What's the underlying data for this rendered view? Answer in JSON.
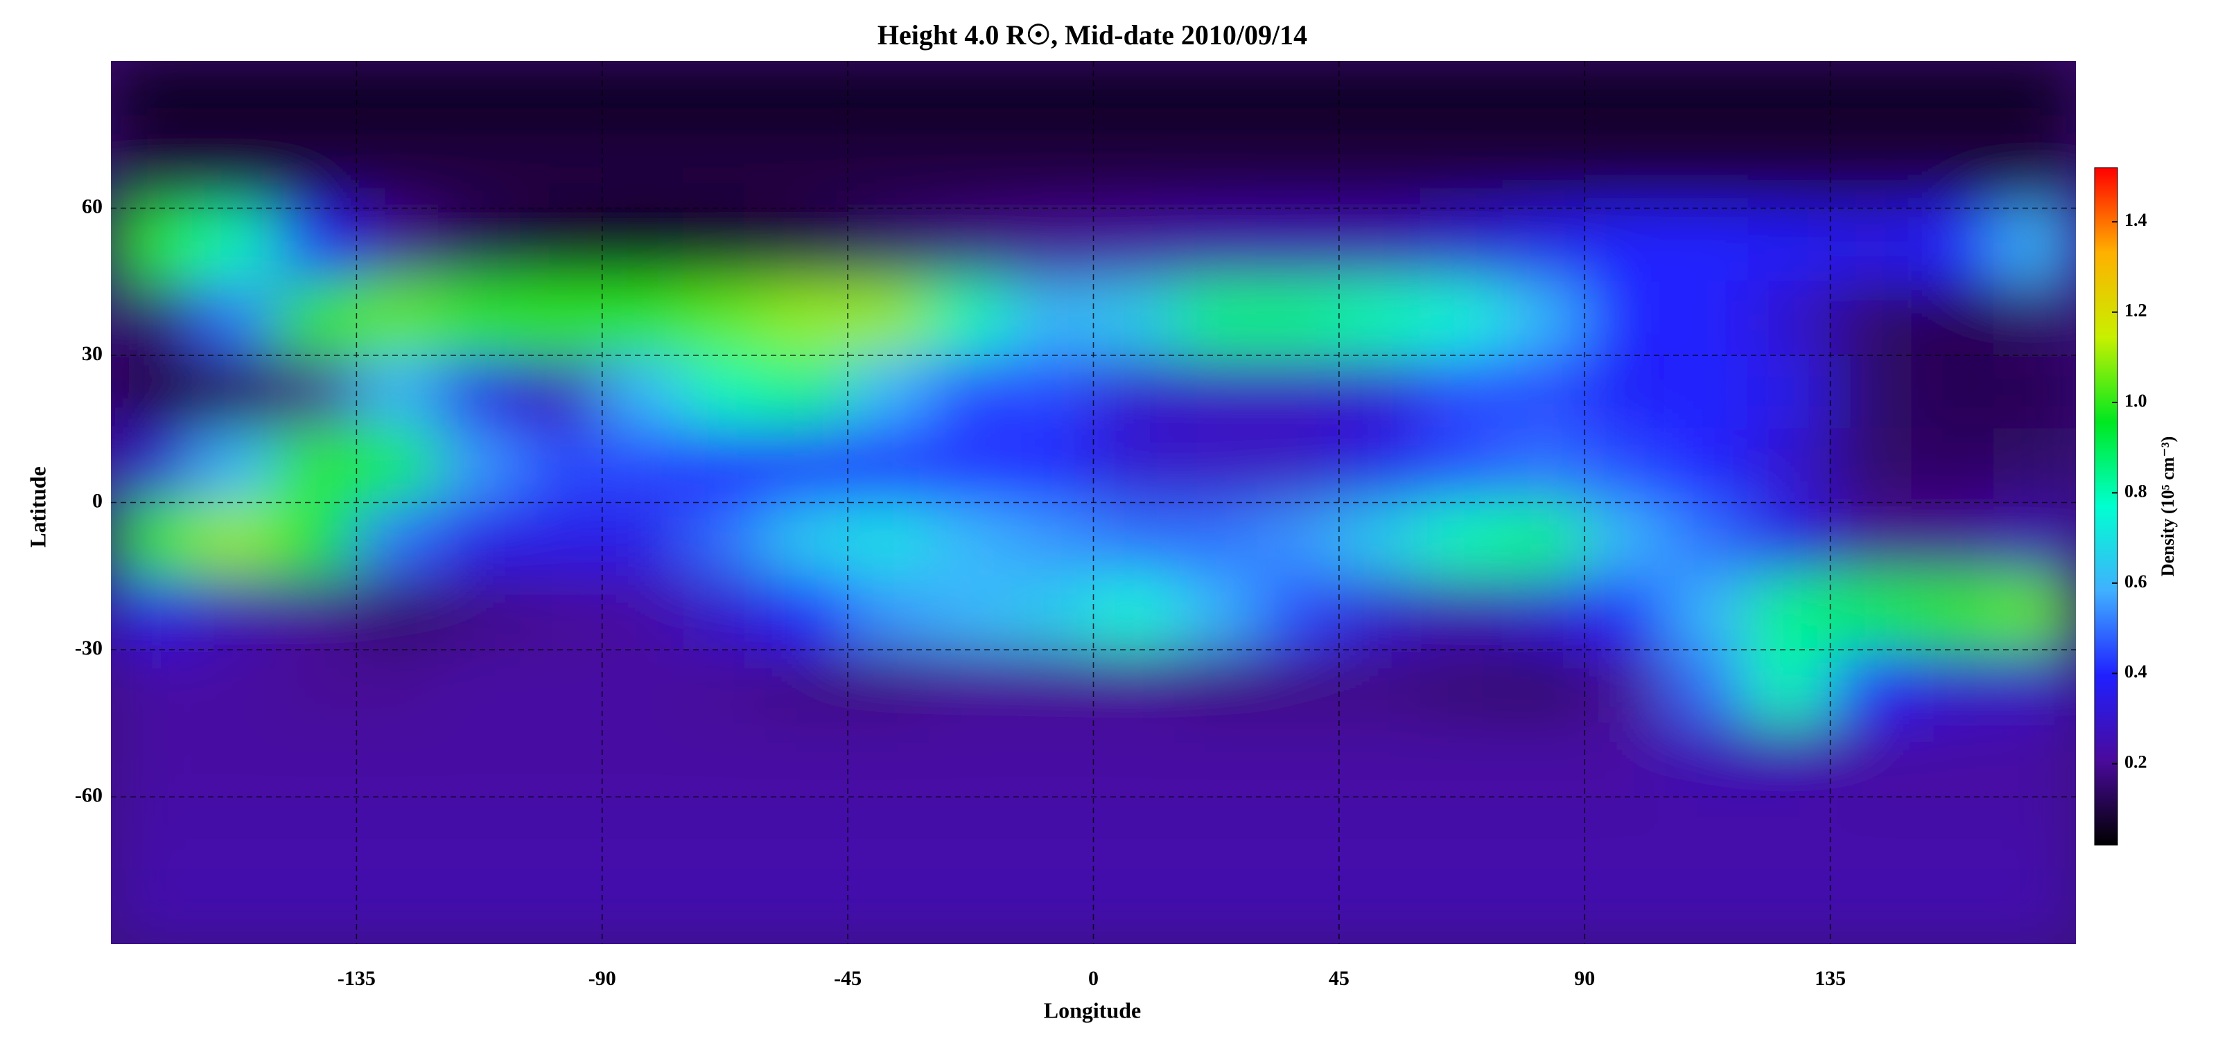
{
  "chart_data": {
    "type": "heatmap",
    "title": "Height 4.0 R☉, Mid-date 2010/09/14",
    "x_label": "Longitude",
    "y_label": "Latitude",
    "colorbar_label": "Density (10⁵ cm⁻³)",
    "xlim": [
      -180,
      180
    ],
    "ylim": [
      -90,
      90
    ],
    "xticks": [
      -135,
      -90,
      -45,
      0,
      45,
      90,
      135
    ],
    "yticks": [
      -60,
      -30,
      0,
      30,
      60
    ],
    "grid": true,
    "clim": [
      0.02,
      1.52
    ],
    "cticks": [
      0.2,
      0.4,
      0.6,
      0.8,
      {
        "value": 1,
        "label": "1.0"
      },
      1.2,
      1.4
    ],
    "colormap": [
      "#000000",
      "#4a0a9c",
      "#2020ff",
      "#40b0ff",
      "#00ffd0",
      "#00e820",
      "#c8f000",
      "#ffb000",
      "#ff0000"
    ],
    "x": [
      -172.5,
      -157.5,
      -142.5,
      -127.5,
      -112.5,
      -97.5,
      -82.5,
      -67.5,
      -52.5,
      -37.5,
      -22.5,
      -7.5,
      7.5,
      22.5,
      37.5,
      52.5,
      67.5,
      82.5,
      97.5,
      112.5,
      127.5,
      142.5,
      157.5,
      172.5
    ],
    "y": [
      82.5,
      67.5,
      52.5,
      37.5,
      22.5,
      7.5,
      -7.5,
      -22.5,
      -37.5,
      -52.5,
      -67.5,
      -82.5
    ],
    "z": [
      [
        0.06,
        0.06,
        0.06,
        0.06,
        0.06,
        0.06,
        0.06,
        0.06,
        0.06,
        0.06,
        0.06,
        0.06,
        0.06,
        0.06,
        0.06,
        0.06,
        0.06,
        0.06,
        0.06,
        0.06,
        0.06,
        0.06,
        0.06,
        0.06
      ],
      [
        0.1,
        0.1,
        0.1,
        0.1,
        0.1,
        0.1,
        0.1,
        0.1,
        0.1,
        0.1,
        0.1,
        0.1,
        0.1,
        0.1,
        0.1,
        0.1,
        0.1,
        0.1,
        0.1,
        0.1,
        0.1,
        0.1,
        0.1,
        0.1
      ],
      [
        1.0,
        0.8,
        0.4,
        0.2,
        0.12,
        0.07,
        0.06,
        0.07,
        0.1,
        0.15,
        0.18,
        0.2,
        0.22,
        0.24,
        0.25,
        0.25,
        0.3,
        0.35,
        0.4,
        0.4,
        0.38,
        0.35,
        0.4,
        0.6
      ],
      [
        0.15,
        0.5,
        1.0,
        1.05,
        1.0,
        1.0,
        1.0,
        1.05,
        1.1,
        1.1,
        0.8,
        0.6,
        0.65,
        0.85,
        0.85,
        0.8,
        0.75,
        0.6,
        0.4,
        0.4,
        0.3,
        0.15,
        0.12,
        0.15
      ],
      [
        0.1,
        0.12,
        0.2,
        0.6,
        0.35,
        0.25,
        0.6,
        0.8,
        0.85,
        0.6,
        0.45,
        0.45,
        0.3,
        0.28,
        0.28,
        0.3,
        0.45,
        0.45,
        0.38,
        0.4,
        0.35,
        0.15,
        0.12,
        0.12
      ],
      [
        0.3,
        0.6,
        1.0,
        0.9,
        0.55,
        0.45,
        0.45,
        0.4,
        0.4,
        0.4,
        0.42,
        0.4,
        0.3,
        0.28,
        0.28,
        0.35,
        0.45,
        0.5,
        0.45,
        0.4,
        0.3,
        0.15,
        0.14,
        0.15
      ],
      [
        1.0,
        1.1,
        0.95,
        0.5,
        0.35,
        0.35,
        0.35,
        0.5,
        0.65,
        0.7,
        0.6,
        0.55,
        0.5,
        0.5,
        0.55,
        0.65,
        0.8,
        0.85,
        0.6,
        0.5,
        0.35,
        0.2,
        0.2,
        0.25
      ],
      [
        0.35,
        0.25,
        0.2,
        0.15,
        0.18,
        0.2,
        0.22,
        0.3,
        0.4,
        0.55,
        0.6,
        0.65,
        0.75,
        0.6,
        0.45,
        0.3,
        0.25,
        0.3,
        0.4,
        0.6,
        0.85,
        0.9,
        1.0,
        1.05
      ],
      [
        0.22,
        0.22,
        0.2,
        0.2,
        0.22,
        0.22,
        0.22,
        0.2,
        0.18,
        0.18,
        0.2,
        0.2,
        0.2,
        0.18,
        0.18,
        0.18,
        0.16,
        0.15,
        0.2,
        0.5,
        0.8,
        0.4,
        0.3,
        0.28
      ],
      [
        0.22,
        0.22,
        0.22,
        0.22,
        0.22,
        0.22,
        0.22,
        0.22,
        0.22,
        0.22,
        0.22,
        0.22,
        0.22,
        0.22,
        0.22,
        0.22,
        0.22,
        0.22,
        0.22,
        0.25,
        0.25,
        0.22,
        0.22,
        0.22
      ],
      [
        0.23,
        0.23,
        0.23,
        0.23,
        0.23,
        0.23,
        0.23,
        0.23,
        0.23,
        0.23,
        0.23,
        0.23,
        0.23,
        0.23,
        0.23,
        0.23,
        0.23,
        0.23,
        0.23,
        0.23,
        0.23,
        0.23,
        0.23,
        0.23
      ],
      [
        0.24,
        0.24,
        0.24,
        0.24,
        0.24,
        0.24,
        0.24,
        0.24,
        0.24,
        0.24,
        0.24,
        0.24,
        0.24,
        0.24,
        0.24,
        0.24,
        0.24,
        0.24,
        0.24,
        0.24,
        0.24,
        0.24,
        0.24,
        0.24
      ]
    ]
  }
}
